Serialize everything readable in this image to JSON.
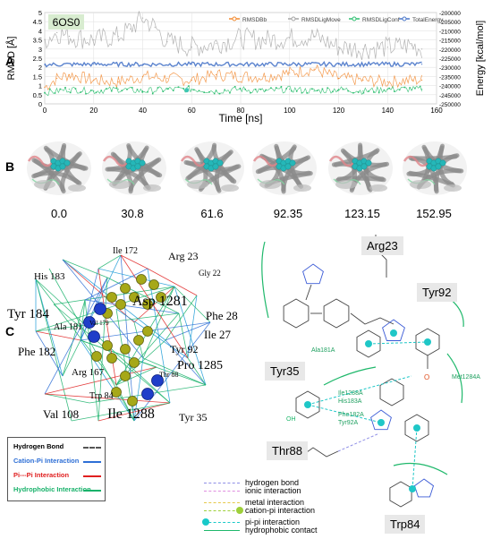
{
  "panels": {
    "a": "A",
    "b": "B",
    "c": "C"
  },
  "chart_data": {
    "type": "line",
    "title": "6OS0",
    "xlabel": "Time [ns]",
    "ylabel": "RMSD [Å]",
    "ylabel2": "Energy [kcal/mol]",
    "xlim": [
      0,
      160
    ],
    "ylim": [
      0,
      5
    ],
    "y2lim": [
      -250000,
      -200000
    ],
    "xticks": [
      "0",
      "20",
      "40",
      "60",
      "80",
      "100",
      "120",
      "140",
      "160"
    ],
    "yticks": [
      "0",
      "0.5",
      "1",
      "1.5",
      "2",
      "2.5",
      "3",
      "3.5",
      "4",
      "4.5",
      "5"
    ],
    "y2ticks": [
      "-200000",
      "-205000",
      "-210000",
      "-215000",
      "-220000",
      "-225000",
      "-230000",
      "-235000",
      "-240000",
      "-245000",
      "-250000"
    ],
    "series": [
      {
        "name": "RMSDBb",
        "color": "#f28a30",
        "x": [
          0,
          5,
          10,
          20,
          30,
          40,
          50,
          60,
          70,
          80,
          90,
          100,
          110,
          120,
          130,
          140,
          150,
          154
        ],
        "y": [
          0.9,
          1.4,
          1.6,
          1.3,
          1.2,
          1.5,
          1.4,
          1.3,
          1.6,
          1.5,
          1.5,
          1.7,
          1.9,
          1.4,
          1.3,
          1.2,
          1.3,
          1.3
        ]
      },
      {
        "name": "RMSDLigMove",
        "color": "#a6a6a6",
        "x": [
          0,
          5,
          10,
          20,
          30,
          35,
          40,
          45,
          50,
          60,
          70,
          80,
          90,
          100,
          110,
          120,
          130,
          140,
          150,
          154
        ],
        "y": [
          3.5,
          3.9,
          3.7,
          3.5,
          3.7,
          4.1,
          4.7,
          4.2,
          3.4,
          3.1,
          3.3,
          3.6,
          3.5,
          3.6,
          3.7,
          3.1,
          3.0,
          3.1,
          3.2,
          3.0
        ]
      },
      {
        "name": "RMSDLigConf",
        "color": "#2fbf71",
        "x": [
          0,
          10,
          20,
          30,
          40,
          50,
          60,
          70,
          80,
          90,
          100,
          110,
          120,
          130,
          140,
          150,
          154
        ],
        "y": [
          0.6,
          0.8,
          0.7,
          0.8,
          0.7,
          0.8,
          0.8,
          0.7,
          0.8,
          0.7,
          0.8,
          0.7,
          0.8,
          0.7,
          0.8,
          0.8,
          0.8
        ]
      },
      {
        "name": "TotalEnergy",
        "color": "#4a77c9",
        "x": [
          0,
          20,
          40,
          60,
          80,
          100,
          120,
          140,
          154
        ],
        "y": [
          -228500,
          -228300,
          -228400,
          -228300,
          -228350,
          -228300,
          -228350,
          -228300,
          -228300
        ]
      }
    ]
  },
  "frames": [
    "0.0",
    "30.8",
    "61.6",
    "92.35",
    "123.15",
    "152.95"
  ],
  "panel_c_left": {
    "residues": [
      "His 183",
      "Ile 172",
      "Arg 23",
      "Gly 22",
      "Asp 1281",
      "Tyr 184",
      "Phe 28",
      "Val 179",
      "Ala 181",
      "Ile 27",
      "Tyr 92",
      "Phe 182",
      "Pro 1285",
      "Arg 167",
      "Thr 88",
      "Trp 84",
      "Val 108",
      "Ile 1288",
      "Tyr 35"
    ],
    "legend": [
      {
        "label": "Hydrogen Bond",
        "color": "#000000"
      },
      {
        "label": "Cation-Pi Interaction",
        "color": "#2e6fd6"
      },
      {
        "label": "Pi---Pi Interaction",
        "color": "#e02020"
      },
      {
        "label": "Hydrophobic Interaction",
        "color": "#19b26b"
      }
    ]
  },
  "panel_c_right": {
    "residues": [
      "Arg23",
      "Tyr92",
      "Tyr35",
      "Thr88",
      "Trp84"
    ],
    "small_labels": [
      "Ala181A",
      "Met1284A",
      "Ile1288A",
      "His183A",
      "Phe182A",
      "Tyr92A"
    ],
    "key": [
      {
        "label": "hydrogen bond",
        "color": "#8f8fe6"
      },
      {
        "label": "ionic interaction",
        "color": "#e08fe0"
      },
      {
        "label": "metal interaction",
        "color": "#e6c84a"
      },
      {
        "label": "cation-pi interaction",
        "color": "#9ecf3a"
      },
      {
        "label": "pi-pi interaction",
        "color": "#19c9c9"
      },
      {
        "label": "hydrophobic contact",
        "color": "#1fb86b"
      }
    ]
  }
}
